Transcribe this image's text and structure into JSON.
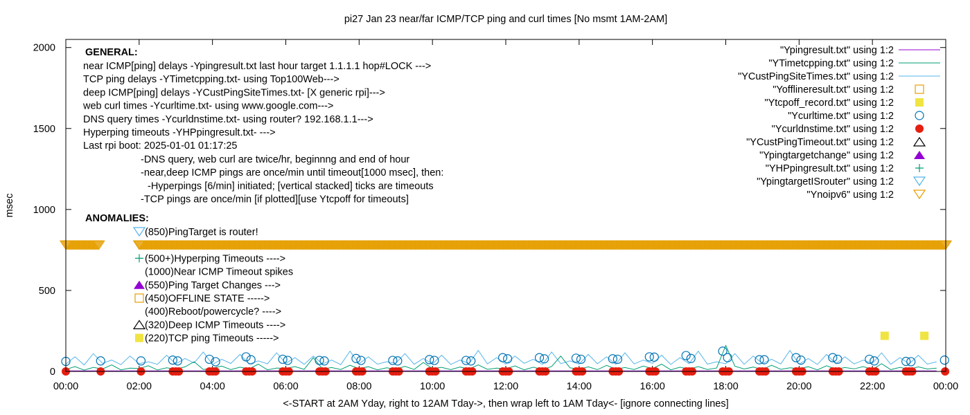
{
  "chart_data": {
    "type": "scatter",
    "title": "pi27 Jan 23  near/far ICMP/TCP ping and curl times [No msmt 1AM-2AM]",
    "xlabel": "<-START at 2AM Yday, right to 12AM Tday->, then wrap left to 1AM Tday<- [ignore connecting lines]",
    "ylabel": "msec",
    "xlim": [
      "00:00",
      "24:00"
    ],
    "ylim": [
      0,
      2050
    ],
    "x_ticks": [
      "00:00",
      "02:00",
      "04:00",
      "06:00",
      "08:00",
      "10:00",
      "12:00",
      "14:00",
      "16:00",
      "18:00",
      "20:00",
      "22:00",
      "00:00"
    ],
    "y_ticks": [
      "0",
      "500",
      "1000",
      "1500",
      "2000"
    ],
    "y_tick_values": [
      0,
      500,
      1000,
      1500,
      2000
    ],
    "grid": false,
    "legend_placement": "top-right",
    "colors": {
      "Ypingresult": "#9400d3",
      "YTimetcpping": "#009e73",
      "YCustPingSiteTimes": "#56b4e9",
      "Yofflineresult": "#e69f00",
      "Ytcpoff": "#f0e442",
      "Ycurltime": "#0072b2",
      "Ycurldnstime": "#e51e10",
      "YCustPingTimeout": "#000000",
      "Ypingtargetchange": "#9400d3",
      "YHPpingresult": "#009e73",
      "YpingtargetISrouter": "#56b4e9",
      "Ynoipv6": "#e69f00"
    },
    "legend": [
      {
        "label": "\"Ypingresult.txt\" using 1:2",
        "symbol": "line",
        "color": "#9400d3"
      },
      {
        "label": "\"YTimetcpping.txt\" using 1:2",
        "symbol": "line",
        "color": "#009e73"
      },
      {
        "label": "\"YCustPingSiteTimes.txt\" using 1:2",
        "symbol": "line",
        "color": "#56b4e9"
      },
      {
        "label": "\"Yofflineresult.txt\" using 1:2",
        "symbol": "open-square",
        "color": "#e69f00"
      },
      {
        "label": "\"Ytcpoff_record.txt\" using 1:2",
        "symbol": "filled-square",
        "color": "#f0e442"
      },
      {
        "label": "\"Ycurltime.txt\" using 1:2",
        "symbol": "open-circle",
        "color": "#0072b2"
      },
      {
        "label": "\"Ycurldnstime.txt\" using 1:2",
        "symbol": "filled-circle",
        "color": "#e51e10"
      },
      {
        "label": "\"YCustPingTimeout.txt\" using 1:2",
        "symbol": "open-triangle-up",
        "color": "#000000"
      },
      {
        "label": "\"Ypingtargetchange\" using 1:2",
        "symbol": "filled-triangle-up",
        "color": "#9400d3"
      },
      {
        "label": "\"YHPpingresult.txt\" using 1:2",
        "symbol": "plus",
        "color": "#009e73"
      },
      {
        "label": "\"YpingtargetISrouter\" using 1:2",
        "symbol": "open-triangle-down",
        "color": "#56b4e9"
      },
      {
        "label": "\"Ynoipv6\" using 1:2",
        "symbol": "open-triangle-down",
        "color": "#e69f00"
      }
    ],
    "series": {
      "Ypingresult": {
        "x_step_min": 15,
        "start": "00:00",
        "values": [
          3,
          3,
          3,
          3,
          3,
          3,
          3,
          3,
          3,
          3,
          3,
          3,
          3,
          3,
          3,
          3,
          3,
          3,
          3,
          3,
          3,
          3,
          3,
          3,
          3,
          3,
          3,
          3,
          3,
          3,
          3,
          3,
          3,
          3,
          3,
          3,
          3,
          3,
          3,
          3,
          3,
          3,
          3,
          3,
          3,
          3,
          3,
          3,
          3,
          3,
          3,
          3,
          3,
          3,
          3,
          3,
          3,
          3,
          3,
          3,
          3,
          3,
          3,
          3,
          3,
          3,
          3,
          3,
          3,
          3,
          3,
          3,
          3,
          3,
          3,
          3,
          3,
          3,
          3,
          3,
          3,
          3,
          3,
          3,
          3,
          3,
          3,
          3,
          3,
          3,
          3,
          3,
          3,
          3,
          3,
          3
        ]
      },
      "YTimetcpping": {
        "x_step_min": 15,
        "start": "00:00",
        "values": [
          12,
          30,
          8,
          25,
          15,
          40,
          10,
          20,
          18,
          35,
          9,
          22,
          14,
          28,
          60,
          12,
          20,
          33,
          11,
          26,
          16,
          45,
          10,
          21,
          19,
          30,
          13,
          85,
          15,
          24,
          12,
          38,
          17,
          29,
          10,
          22,
          14,
          31,
          12,
          55,
          18,
          25,
          11,
          27,
          15,
          40,
          13,
          20,
          16,
          34,
          10,
          26,
          12,
          30,
          95,
          22,
          14,
          28,
          11,
          37,
          15,
          24,
          12,
          33,
          18,
          45,
          10,
          26,
          14,
          30,
          12,
          21,
          160,
          32,
          15,
          27,
          11,
          38,
          13,
          22,
          17,
          29,
          10,
          35,
          14,
          24,
          16,
          30,
          12,
          48,
          11,
          25,
          13,
          28,
          15,
          20
        ]
      },
      "YCustPingSiteTimes": {
        "x_step_min": 15,
        "start": "00:00",
        "values": [
          45,
          90,
          40,
          110,
          50,
          70,
          42,
          95,
          48,
          60,
          44,
          100,
          46,
          80,
          52,
          120,
          43,
          75,
          49,
          105,
          45,
          65,
          47,
          115,
          50,
          85,
          44,
          95,
          46,
          70,
          42,
          125,
          48,
          90,
          45,
          60,
          51,
          110,
          44,
          80,
          47,
          100,
          43,
          70,
          49,
          130,
          46,
          85,
          45,
          95,
          50,
          75,
          43,
          120,
          48,
          65,
          45,
          105,
          47,
          90,
          44,
          115,
          46,
          70,
          50,
          100,
          43,
          85,
          48,
          125,
          45,
          60,
          47,
          110,
          44,
          95,
          49,
          75,
          46,
          130,
          45,
          80,
          43,
          105,
          48,
          90,
          46,
          70,
          50,
          115,
          44,
          85,
          47,
          100,
          45,
          60
        ]
      },
      "Ycurltime": [
        [
          "00:00",
          62
        ],
        [
          "00:57",
          65
        ],
        [
          "02:03",
          65
        ],
        [
          "02:55",
          70
        ],
        [
          "03:03",
          65
        ],
        [
          "03:55",
          75
        ],
        [
          "04:05",
          60
        ],
        [
          "04:55",
          90
        ],
        [
          "05:03",
          72
        ],
        [
          "05:55",
          75
        ],
        [
          "06:03",
          68
        ],
        [
          "06:55",
          68
        ],
        [
          "07:03",
          65
        ],
        [
          "07:55",
          80
        ],
        [
          "08:03",
          68
        ],
        [
          "08:55",
          68
        ],
        [
          "09:03",
          65
        ],
        [
          "09:55",
          73
        ],
        [
          "10:03",
          68
        ],
        [
          "10:55",
          68
        ],
        [
          "11:03",
          65
        ],
        [
          "11:55",
          85
        ],
        [
          "12:03",
          78
        ],
        [
          "12:55",
          85
        ],
        [
          "13:03",
          78
        ],
        [
          "13:55",
          82
        ],
        [
          "14:03",
          75
        ],
        [
          "14:55",
          78
        ],
        [
          "15:03",
          75
        ],
        [
          "15:55",
          90
        ],
        [
          "16:03",
          88
        ],
        [
          "16:55",
          98
        ],
        [
          "17:03",
          80
        ],
        [
          "17:55",
          125
        ],
        [
          "18:03",
          85
        ],
        [
          "18:55",
          72
        ],
        [
          "19:03",
          72
        ],
        [
          "19:55",
          85
        ],
        [
          "20:03",
          70
        ],
        [
          "20:55",
          85
        ],
        [
          "21:03",
          75
        ],
        [
          "21:55",
          75
        ],
        [
          "22:03",
          65
        ],
        [
          "22:55",
          62
        ],
        [
          "23:03",
          60
        ],
        [
          "23:58",
          70
        ]
      ],
      "Ycurldnstime": [
        [
          "00:00",
          0
        ],
        [
          "00:57",
          0
        ],
        [
          "02:03",
          0
        ],
        [
          "02:55",
          0
        ],
        [
          "03:00",
          0
        ],
        [
          "03:05",
          0
        ],
        [
          "03:55",
          0
        ],
        [
          "04:00",
          0
        ],
        [
          "04:05",
          0
        ],
        [
          "04:55",
          0
        ],
        [
          "05:00",
          0
        ],
        [
          "05:05",
          0
        ],
        [
          "05:55",
          0
        ],
        [
          "06:00",
          0
        ],
        [
          "06:05",
          0
        ],
        [
          "06:55",
          0
        ],
        [
          "07:00",
          0
        ],
        [
          "07:05",
          0
        ],
        [
          "07:55",
          0
        ],
        [
          "08:00",
          0
        ],
        [
          "08:05",
          0
        ],
        [
          "08:55",
          0
        ],
        [
          "09:00",
          0
        ],
        [
          "09:05",
          0
        ],
        [
          "09:55",
          0
        ],
        [
          "10:00",
          0
        ],
        [
          "10:05",
          0
        ],
        [
          "10:55",
          0
        ],
        [
          "11:00",
          0
        ],
        [
          "11:05",
          0
        ],
        [
          "11:55",
          0
        ],
        [
          "12:00",
          0
        ],
        [
          "12:05",
          0
        ],
        [
          "12:55",
          0
        ],
        [
          "13:00",
          0
        ],
        [
          "13:05",
          0
        ],
        [
          "13:55",
          0
        ],
        [
          "14:00",
          0
        ],
        [
          "14:05",
          0
        ],
        [
          "14:55",
          0
        ],
        [
          "15:00",
          0
        ],
        [
          "15:05",
          0
        ],
        [
          "15:55",
          0
        ],
        [
          "16:00",
          0
        ],
        [
          "16:05",
          0
        ],
        [
          "16:55",
          0
        ],
        [
          "17:00",
          0
        ],
        [
          "17:05",
          0
        ],
        [
          "17:55",
          0
        ],
        [
          "18:00",
          0
        ],
        [
          "18:05",
          0
        ],
        [
          "18:55",
          0
        ],
        [
          "19:00",
          0
        ],
        [
          "19:05",
          0
        ],
        [
          "19:55",
          0
        ],
        [
          "20:00",
          0
        ],
        [
          "20:05",
          0
        ],
        [
          "20:55",
          0
        ],
        [
          "21:00",
          0
        ],
        [
          "21:05",
          0
        ],
        [
          "21:55",
          0
        ],
        [
          "22:00",
          0
        ],
        [
          "22:05",
          0
        ],
        [
          "22:55",
          0
        ],
        [
          "23:00",
          0
        ],
        [
          "23:05",
          0
        ],
        [
          "23:59",
          0
        ]
      ],
      "Ytcpoff_record": [
        [
          "22:20",
          220
        ],
        [
          "23:25",
          220
        ]
      ],
      "Ynoipv6": {
        "value": 780,
        "ranges": [
          [
            "00:00",
            "00:55"
          ],
          [
            "02:00",
            "24:00"
          ]
        ]
      }
    }
  },
  "annotations": {
    "general_title": "GENERAL:",
    "general_lines": [
      "near ICMP[ping] delays -Ypingresult.txt last hour target 1.1.1.1 hop#LOCK --->",
      "TCP ping delays -YTimetcpping.txt- using Top100Web--->",
      "deep ICMP[ping] delays -YCustPingSiteTimes.txt- [X generic rpi]--->",
      "web curl times -Ycurltime.txt- using www.google.com--->",
      "DNS query times -Ycurldnstime.txt- using router? 192.168.1.1--->",
      "Hyperping timeouts -YHPpingresult.txt- --->",
      "Last rpi boot: 2025-01-01 01:17:25"
    ],
    "notes": [
      "-DNS query, web curl are twice/hr, beginnng and end of hour",
      "-near,deep ICMP pings are once/min until timeout[1000 msec], then:",
      "-Hyperpings [6/min] initiated; [vertical stacked] ticks are timeouts",
      "-TCP pings are once/min [if plotted][use Ytcpoff for timeouts]"
    ],
    "anomalies_title": "ANOMALIES:",
    "anomalies": [
      {
        "text": "(850)PingTarget is router!",
        "symbol": "open-triangle-down",
        "color": "#56b4e9"
      },
      {
        "text": "",
        "symbol": "open-triangle-down",
        "color": "#e69f00"
      },
      {
        "text": "(500+)Hyperping Timeouts ---->",
        "symbol": "plus",
        "color": "#009e73"
      },
      {
        "text": "(1000)Near ICMP Timeout spikes",
        "symbol": "none",
        "color": ""
      },
      {
        "text": "(550)Ping Target Changes --->",
        "symbol": "filled-triangle-up",
        "color": "#9400d3"
      },
      {
        "text": "(450)OFFLINE STATE ----->",
        "symbol": "open-square",
        "color": "#e69f00"
      },
      {
        "text": "(400)Reboot/powercycle? ---->",
        "symbol": "none",
        "color": ""
      },
      {
        "text": "(320)Deep ICMP Timeouts ---->",
        "symbol": "open-triangle-up",
        "color": "#000000"
      },
      {
        "text": "(220)TCP ping Timeouts ----->",
        "symbol": "filled-square",
        "color": "#f0e442"
      }
    ]
  }
}
